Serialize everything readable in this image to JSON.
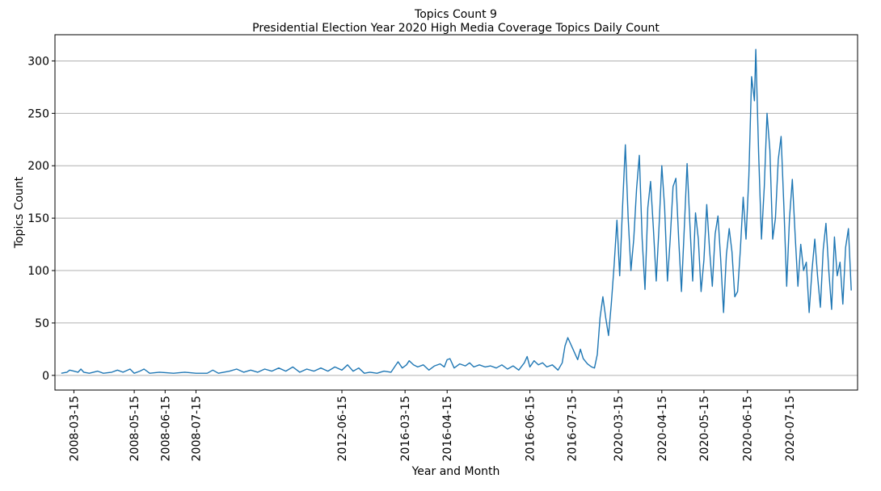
{
  "chart_data": {
    "type": "line",
    "title": "Topics Count 9",
    "subtitle": "Presidential Election Year 2020 High Media Coverage Topics Daily Count",
    "xlabel": "Year and Month",
    "ylabel": "Topics Count",
    "ylim": [
      -14,
      325
    ],
    "yticks": [
      0,
      50,
      100,
      150,
      200,
      250,
      300
    ],
    "grid": "horizontal",
    "x_is_categorical_index": true,
    "x_ticks": [
      {
        "label": "2008-03-15",
        "index": 9
      },
      {
        "label": "2008-05-15",
        "index": 52
      },
      {
        "label": "2008-06-15",
        "index": 74
      },
      {
        "label": "2008-07-15",
        "index": 96
      },
      {
        "label": "2012-06-15",
        "index": 200
      },
      {
        "label": "2016-03-15",
        "index": 245
      },
      {
        "label": "2016-04-15",
        "index": 275
      },
      {
        "label": "2016-06-15",
        "index": 334
      },
      {
        "label": "2016-07-15",
        "index": 364
      },
      {
        "label": "2020-03-15",
        "index": 397
      },
      {
        "label": "2020-04-15",
        "index": 428
      },
      {
        "label": "2020-05-15",
        "index": 458
      },
      {
        "label": "2020-06-15",
        "index": 489
      },
      {
        "label": "2020-07-15",
        "index": 519
      }
    ],
    "series": [
      {
        "color": "#1f77b4",
        "anchors": [
          [
            0,
            2
          ],
          [
            4,
            3
          ],
          [
            6,
            5
          ],
          [
            9,
            4
          ],
          [
            12,
            3
          ],
          [
            14,
            6
          ],
          [
            16,
            3
          ],
          [
            20,
            2
          ],
          [
            26,
            4
          ],
          [
            30,
            2
          ],
          [
            36,
            3
          ],
          [
            40,
            5
          ],
          [
            44,
            3
          ],
          [
            49,
            6
          ],
          [
            52,
            2
          ],
          [
            56,
            4
          ],
          [
            59,
            6
          ],
          [
            63,
            2
          ],
          [
            70,
            3
          ],
          [
            80,
            2
          ],
          [
            88,
            3
          ],
          [
            96,
            2
          ],
          [
            104,
            2
          ],
          [
            108,
            5
          ],
          [
            112,
            2
          ],
          [
            120,
            4
          ],
          [
            125,
            6
          ],
          [
            130,
            3
          ],
          [
            135,
            5
          ],
          [
            140,
            3
          ],
          [
            145,
            6
          ],
          [
            150,
            4
          ],
          [
            155,
            7
          ],
          [
            160,
            4
          ],
          [
            165,
            8
          ],
          [
            170,
            3
          ],
          [
            175,
            6
          ],
          [
            180,
            4
          ],
          [
            185,
            7
          ],
          [
            190,
            4
          ],
          [
            195,
            8
          ],
          [
            200,
            5
          ],
          [
            204,
            10
          ],
          [
            208,
            4
          ],
          [
            212,
            7
          ],
          [
            216,
            2
          ],
          [
            220,
            3
          ],
          [
            225,
            2
          ],
          [
            230,
            4
          ],
          [
            235,
            3
          ],
          [
            238,
            9
          ],
          [
            240,
            13
          ],
          [
            243,
            7
          ],
          [
            246,
            10
          ],
          [
            248,
            14
          ],
          [
            251,
            10
          ],
          [
            254,
            8
          ],
          [
            258,
            10
          ],
          [
            262,
            5
          ],
          [
            266,
            9
          ],
          [
            270,
            11
          ],
          [
            273,
            8
          ],
          [
            275,
            15
          ],
          [
            277,
            16
          ],
          [
            280,
            7
          ],
          [
            284,
            11
          ],
          [
            288,
            9
          ],
          [
            291,
            12
          ],
          [
            294,
            8
          ],
          [
            298,
            10
          ],
          [
            302,
            8
          ],
          [
            306,
            9
          ],
          [
            310,
            7
          ],
          [
            314,
            10
          ],
          [
            318,
            6
          ],
          [
            322,
            9
          ],
          [
            326,
            5
          ],
          [
            330,
            12
          ],
          [
            332,
            18
          ],
          [
            334,
            8
          ],
          [
            337,
            14
          ],
          [
            340,
            10
          ],
          [
            343,
            12
          ],
          [
            346,
            8
          ],
          [
            350,
            10
          ],
          [
            354,
            5
          ],
          [
            357,
            12
          ],
          [
            359,
            28
          ],
          [
            361,
            36
          ],
          [
            363,
            30
          ],
          [
            365,
            24
          ],
          [
            368,
            15
          ],
          [
            370,
            25
          ],
          [
            372,
            16
          ],
          [
            375,
            11
          ],
          [
            378,
            8
          ],
          [
            380,
            7
          ],
          [
            382,
            20
          ],
          [
            384,
            55
          ],
          [
            386,
            75
          ],
          [
            388,
            55
          ],
          [
            390,
            38
          ],
          [
            392,
            68
          ],
          [
            394,
            105
          ],
          [
            396,
            148
          ],
          [
            398,
            95
          ],
          [
            400,
            160
          ],
          [
            402,
            220
          ],
          [
            404,
            150
          ],
          [
            406,
            100
          ],
          [
            408,
            130
          ],
          [
            410,
            178
          ],
          [
            412,
            210
          ],
          [
            414,
            130
          ],
          [
            416,
            82
          ],
          [
            418,
            160
          ],
          [
            420,
            185
          ],
          [
            422,
            140
          ],
          [
            424,
            90
          ],
          [
            426,
            142
          ],
          [
            428,
            200
          ],
          [
            430,
            160
          ],
          [
            432,
            90
          ],
          [
            434,
            130
          ],
          [
            436,
            180
          ],
          [
            438,
            188
          ],
          [
            440,
            130
          ],
          [
            442,
            80
          ],
          [
            444,
            140
          ],
          [
            446,
            202
          ],
          [
            448,
            145
          ],
          [
            450,
            90
          ],
          [
            452,
            155
          ],
          [
            454,
            130
          ],
          [
            456,
            80
          ],
          [
            458,
            110
          ],
          [
            460,
            163
          ],
          [
            462,
            120
          ],
          [
            464,
            85
          ],
          [
            466,
            135
          ],
          [
            468,
            152
          ],
          [
            470,
            110
          ],
          [
            472,
            60
          ],
          [
            474,
            115
          ],
          [
            476,
            140
          ],
          [
            478,
            118
          ],
          [
            480,
            75
          ],
          [
            482,
            80
          ],
          [
            484,
            120
          ],
          [
            486,
            170
          ],
          [
            488,
            130
          ],
          [
            490,
            190
          ],
          [
            492,
            285
          ],
          [
            494,
            262
          ],
          [
            495,
            311
          ],
          [
            497,
            212
          ],
          [
            499,
            130
          ],
          [
            501,
            180
          ],
          [
            503,
            250
          ],
          [
            505,
            215
          ],
          [
            507,
            130
          ],
          [
            509,
            150
          ],
          [
            511,
            206
          ],
          [
            513,
            228
          ],
          [
            515,
            160
          ],
          [
            517,
            85
          ],
          [
            519,
            150
          ],
          [
            521,
            187
          ],
          [
            523,
            135
          ],
          [
            525,
            85
          ],
          [
            527,
            125
          ],
          [
            529,
            100
          ],
          [
            531,
            108
          ],
          [
            533,
            60
          ],
          [
            535,
            100
          ],
          [
            537,
            130
          ],
          [
            539,
            95
          ],
          [
            541,
            65
          ],
          [
            543,
            120
          ],
          [
            545,
            145
          ],
          [
            547,
            100
          ],
          [
            549,
            63
          ],
          [
            551,
            132
          ],
          [
            553,
            95
          ],
          [
            555,
            108
          ],
          [
            557,
            68
          ],
          [
            559,
            122
          ],
          [
            561,
            140
          ],
          [
            563,
            81
          ]
        ]
      }
    ]
  }
}
